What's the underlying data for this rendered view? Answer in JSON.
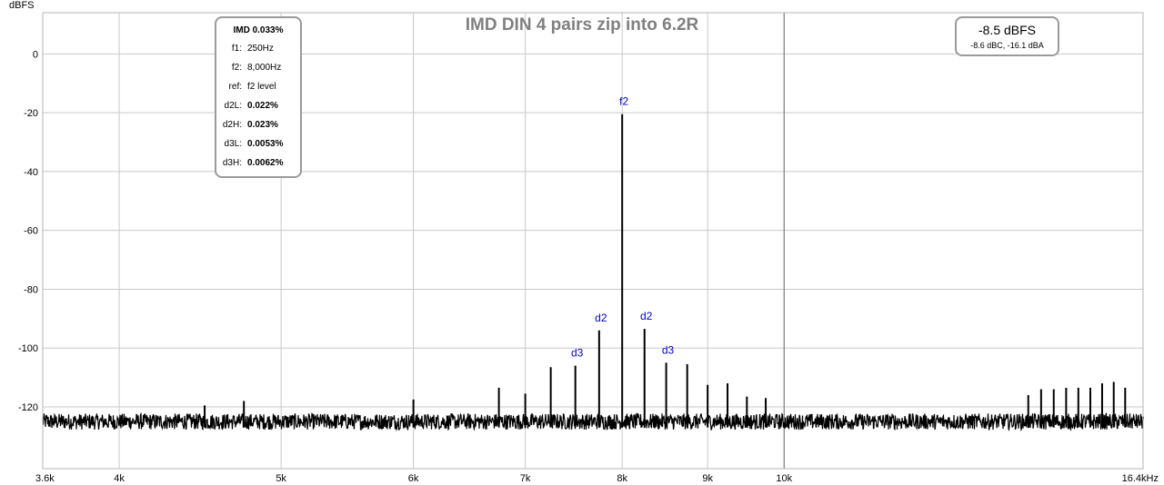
{
  "chart_data": {
    "type": "line",
    "title": "IMD DIN 4 pairs zip into 6.2R",
    "ylabel": "dBFS",
    "xlabel": "",
    "x_scale": "log",
    "xlim": [
      3600,
      16400
    ],
    "ylim": [
      -141,
      14
    ],
    "grid": true,
    "x_ticks": [
      {
        "value": 3600,
        "label": "3.6k"
      },
      {
        "value": 4000,
        "label": "4k"
      },
      {
        "value": 5000,
        "label": "5k"
      },
      {
        "value": 6000,
        "label": "6k"
      },
      {
        "value": 7000,
        "label": "7k"
      },
      {
        "value": 8000,
        "label": "8k"
      },
      {
        "value": 9000,
        "label": "9k"
      },
      {
        "value": 10000,
        "label": "10k"
      },
      {
        "value": 16400,
        "label": "16.4kHz"
      }
    ],
    "y_ticks": [
      {
        "value": 0,
        "label": "0"
      },
      {
        "value": -20,
        "label": "-20"
      },
      {
        "value": -40,
        "label": "-40"
      },
      {
        "value": -60,
        "label": "-60"
      },
      {
        "value": -80,
        "label": "-80"
      },
      {
        "value": -100,
        "label": "-100"
      },
      {
        "value": -120,
        "label": "-120"
      }
    ],
    "noise_floor": -125,
    "peaks": [
      {
        "x": 4500,
        "y": -119.5
      },
      {
        "x": 4750,
        "y": -118
      },
      {
        "x": 6000,
        "y": -117.5
      },
      {
        "x": 6750,
        "y": -113.5
      },
      {
        "x": 7000,
        "y": -115.5
      },
      {
        "x": 7250,
        "y": -106.5
      },
      {
        "x": 7500,
        "y": -106
      },
      {
        "x": 7750,
        "y": -94
      },
      {
        "x": 8000,
        "y": -20.5
      },
      {
        "x": 8250,
        "y": -93.5
      },
      {
        "x": 8500,
        "y": -105
      },
      {
        "x": 8750,
        "y": -105.5
      },
      {
        "x": 9000,
        "y": -112.5
      },
      {
        "x": 9250,
        "y": -112
      },
      {
        "x": 9500,
        "y": -116.5
      },
      {
        "x": 9750,
        "y": -117
      },
      {
        "x": 14000,
        "y": -116
      },
      {
        "x": 14250,
        "y": -114
      },
      {
        "x": 14500,
        "y": -114
      },
      {
        "x": 14750,
        "y": -113.5
      },
      {
        "x": 15000,
        "y": -113.5
      },
      {
        "x": 15250,
        "y": -113.5
      },
      {
        "x": 15500,
        "y": -112
      },
      {
        "x": 15750,
        "y": -111.5
      },
      {
        "x": 16000,
        "y": -113.5
      }
    ],
    "annotations": [
      {
        "x": 8000,
        "y": -20.5,
        "text": "f2"
      },
      {
        "x": 7750,
        "y": -94,
        "text": "d2"
      },
      {
        "x": 8250,
        "y": -93.5,
        "text": "d2"
      },
      {
        "x": 7500,
        "y": -106,
        "text": "d3"
      },
      {
        "x": 8500,
        "y": -105,
        "text": "d3"
      }
    ],
    "cursor_x": 10000,
    "line_color": "#000000",
    "annotation_color": "#0000c8"
  },
  "imd_box": {
    "header": "IMD 0.033%",
    "rows": [
      {
        "label": "f1:",
        "value": "250Hz",
        "bold": false
      },
      {
        "label": "f2:",
        "value": "8,000Hz",
        "bold": false
      },
      {
        "label": "ref:",
        "value": "f2 level",
        "bold": false
      },
      {
        "label": "d2L:",
        "value": "0.022%",
        "bold": true
      },
      {
        "label": "d2H:",
        "value": "0.023%",
        "bold": true
      },
      {
        "label": "d3L:",
        "value": "0.0053%",
        "bold": true
      },
      {
        "label": "d3H:",
        "value": "0.0062%",
        "bold": true
      }
    ]
  },
  "level_box": {
    "main": "-8.5 dBFS",
    "sub": "-8.6 dBC, -16.1 dBA"
  }
}
